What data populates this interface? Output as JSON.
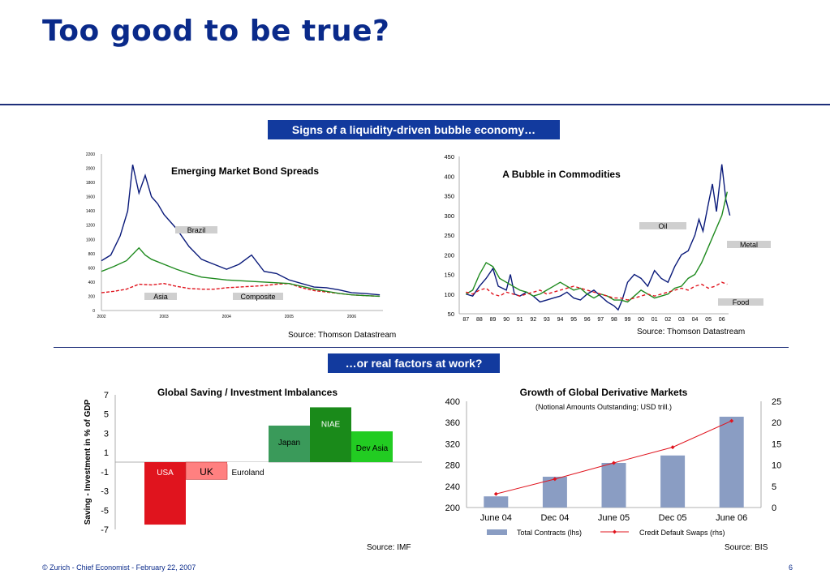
{
  "page": {
    "title": "Too good to be true?",
    "banner_top": "Signs of a liquidity-driven bubble economy…",
    "banner_bottom": "…or real factors at work?",
    "footer_left": "© Zurich  -    Chief Economist - February 22, 2007",
    "page_number": "6"
  },
  "chart_data": [
    {
      "type": "line",
      "title": "Emerging Market Bond Spreads",
      "source": "Source: Thomson Datastream",
      "y_ticks": [
        "2200",
        "2000",
        "1800",
        "1600",
        "1400",
        "1200",
        "1000",
        "800",
        "600",
        "400",
        "200",
        "0"
      ],
      "x_ticks": [
        "2002",
        "2003",
        "2004",
        "2005",
        "2006"
      ],
      "ylim": [
        0,
        2200
      ],
      "xlim": [
        2002.0,
        2006.5
      ],
      "series": [
        {
          "name": "Brazil",
          "color": "#0a1a7a",
          "x": [
            2002.0,
            2002.15,
            2002.3,
            2002.42,
            2002.5,
            2002.6,
            2002.7,
            2002.8,
            2002.9,
            2003.0,
            2003.2,
            2003.4,
            2003.6,
            2003.8,
            2004.0,
            2004.2,
            2004.4,
            2004.6,
            2004.8,
            2005.0,
            2005.2,
            2005.4,
            2005.6,
            2005.8,
            2006.0,
            2006.2,
            2006.45
          ],
          "y": [
            700,
            780,
            1050,
            1400,
            2050,
            1650,
            1900,
            1600,
            1500,
            1350,
            1150,
            900,
            720,
            650,
            580,
            650,
            780,
            550,
            520,
            430,
            380,
            330,
            320,
            290,
            250,
            240,
            220
          ]
        },
        {
          "name": "Asia",
          "color": "#e0141e",
          "x": [
            2002.0,
            2002.2,
            2002.4,
            2002.6,
            2002.8,
            2003.0,
            2003.2,
            2003.4,
            2003.6,
            2003.8,
            2004.0,
            2004.2,
            2004.4,
            2004.6,
            2004.8,
            2005.0,
            2005.2,
            2005.4,
            2005.6,
            2005.8,
            2006.0,
            2006.2,
            2006.45
          ],
          "y": [
            250,
            270,
            300,
            370,
            360,
            380,
            340,
            310,
            300,
            300,
            320,
            330,
            340,
            350,
            370,
            380,
            320,
            280,
            260,
            240,
            220,
            210,
            200
          ]
        },
        {
          "name": "Composite",
          "color": "#1e8a1e",
          "x": [
            2002.0,
            2002.2,
            2002.4,
            2002.6,
            2002.7,
            2002.8,
            2003.0,
            2003.2,
            2003.4,
            2003.6,
            2003.8,
            2004.0,
            2004.2,
            2004.4,
            2004.6,
            2004.8,
            2005.0,
            2005.2,
            2005.4,
            2005.6,
            2005.8,
            2006.0,
            2006.2,
            2006.45
          ],
          "y": [
            550,
            620,
            700,
            880,
            780,
            720,
            650,
            580,
            520,
            470,
            450,
            430,
            420,
            410,
            400,
            390,
            380,
            340,
            300,
            270,
            240,
            220,
            210,
            200
          ]
        }
      ]
    },
    {
      "type": "line",
      "title": "A Bubble in Commodities",
      "source": "Source: Thomson Datastream",
      "y_ticks": [
        "450",
        "400",
        "350",
        "300",
        "250",
        "200",
        "150",
        "100",
        "50"
      ],
      "x_ticks": [
        "87",
        "88",
        "89",
        "90",
        "91",
        "92",
        "93",
        "94",
        "95",
        "96",
        "97",
        "98",
        "99",
        "00",
        "01",
        "02",
        "03",
        "04",
        "05",
        "06"
      ],
      "ylim": [
        50,
        450
      ],
      "series": [
        {
          "name": "Oil",
          "color": "#0a1a7a",
          "x": [
            0,
            0.5,
            1,
            1.5,
            2,
            2.4,
            3,
            3.3,
            3.6,
            4,
            4.5,
            5,
            5.5,
            6,
            6.5,
            7,
            7.5,
            8,
            8.5,
            9,
            9.5,
            10,
            10.5,
            11,
            11.3,
            11.6,
            12,
            12.5,
            13,
            13.5,
            14,
            14.5,
            15,
            15.5,
            16,
            16.5,
            17,
            17.3,
            17.6,
            18,
            18.3,
            18.6,
            19,
            19.3,
            19.6
          ],
          "y": [
            100,
            95,
            120,
            140,
            165,
            120,
            110,
            150,
            100,
            95,
            105,
            95,
            80,
            85,
            90,
            95,
            105,
            90,
            85,
            100,
            110,
            95,
            80,
            70,
            60,
            85,
            130,
            150,
            140,
            120,
            160,
            140,
            130,
            170,
            200,
            210,
            250,
            290,
            260,
            330,
            380,
            310,
            430,
            340,
            300
          ]
        },
        {
          "name": "Metal",
          "color": "#1e8a1e",
          "x": [
            0,
            0.5,
            1,
            1.5,
            2,
            2.5,
            3,
            3.5,
            4,
            4.5,
            5,
            5.5,
            6,
            6.5,
            7,
            7.5,
            8,
            8.5,
            9,
            9.5,
            10,
            10.5,
            11,
            11.5,
            12,
            12.5,
            13,
            13.5,
            14,
            14.5,
            15,
            15.5,
            16,
            16.5,
            17,
            17.5,
            18,
            18.5,
            19,
            19.4
          ],
          "y": [
            100,
            110,
            150,
            180,
            170,
            140,
            130,
            120,
            110,
            105,
            95,
            100,
            110,
            120,
            130,
            120,
            110,
            115,
            100,
            90,
            100,
            95,
            85,
            85,
            80,
            95,
            110,
            100,
            90,
            95,
            100,
            115,
            120,
            140,
            150,
            180,
            220,
            260,
            300,
            360
          ]
        },
        {
          "name": "Food",
          "color": "#e0141e",
          "x": [
            0,
            0.5,
            1,
            1.5,
            2,
            2.5,
            3,
            3.5,
            4,
            4.5,
            5,
            5.5,
            6,
            6.5,
            7,
            7.5,
            8,
            8.5,
            9,
            9.5,
            10,
            10.5,
            11,
            11.5,
            12,
            12.5,
            13,
            13.5,
            14,
            14.5,
            15,
            15.5,
            16,
            16.5,
            17,
            17.5,
            18,
            18.5,
            19,
            19.4
          ],
          "y": [
            105,
            100,
            110,
            115,
            100,
            95,
            105,
            100,
            95,
            100,
            105,
            110,
            100,
            105,
            110,
            115,
            120,
            115,
            110,
            105,
            100,
            95,
            90,
            90,
            85,
            90,
            95,
            100,
            95,
            100,
            105,
            110,
            115,
            110,
            120,
            125,
            115,
            120,
            130,
            125
          ]
        }
      ]
    },
    {
      "type": "bar",
      "title": "Global Saving / Investment Imbalances",
      "ylabel": "Saving - Investment in % of GDP",
      "source": "Source: IMF",
      "y_ticks": [
        "7",
        "5",
        "3",
        "1",
        "-1",
        "-3",
        "-5",
        "-7"
      ],
      "ylim": [
        -7,
        7
      ],
      "categories": [
        "USA",
        "UK",
        "Euroland",
        "Japan",
        "NIAE",
        "Dev Asia"
      ],
      "values": [
        -6.5,
        -1.8,
        -0.2,
        3.8,
        5.7,
        3.2
      ],
      "colors": [
        "#e0141e",
        "#ff8080",
        "#ffffff",
        "#3a9a5a",
        "#1a8a1a",
        "#22cc22"
      ]
    },
    {
      "type": "bar",
      "title": "Growth of Global Derivative Markets",
      "subtitle": "(Notional Amounts Outstanding; USD trill.)",
      "source": "Source: BIS",
      "categories": [
        "June 04",
        "Dec 04",
        "June 05",
        "Dec 05",
        "June 06"
      ],
      "y_ticks_left": [
        "400",
        "360",
        "320",
        "280",
        "240",
        "200"
      ],
      "y_ticks_right": [
        "25",
        "20",
        "15",
        "10",
        "5",
        "0"
      ],
      "ylim_left": [
        200,
        400
      ],
      "ylim_right": [
        0,
        25
      ],
      "series": [
        {
          "name": "Total Contracts (lhs)",
          "type": "bar",
          "color": "#8a9dc3",
          "values": [
            221,
            258,
            284,
            298,
            371
          ]
        },
        {
          "name": "Credit Default Swaps (rhs)",
          "type": "line",
          "color": "#e0141e",
          "values": [
            3.2,
            6.7,
            10.5,
            14.2,
            20.4
          ]
        }
      ]
    }
  ]
}
